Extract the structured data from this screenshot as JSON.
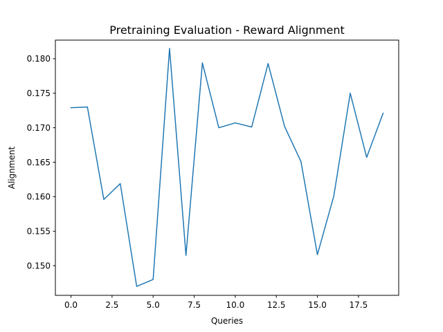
{
  "chart_data": {
    "type": "line",
    "title": "Pretraining Evaluation - Reward Alignment",
    "xlabel": "Queries",
    "ylabel": "Alignment",
    "xlim": [
      -0.95,
      19.95
    ],
    "ylim": [
      0.1457,
      0.1827
    ],
    "xticks": [
      0,
      2.5,
      5,
      7.5,
      10,
      12.5,
      15,
      17.5
    ],
    "xtick_labels": [
      "0.0",
      "2.5",
      "5.0",
      "7.5",
      "10.0",
      "12.5",
      "15.0",
      "17.5"
    ],
    "yticks": [
      0.15,
      0.155,
      0.16,
      0.165,
      0.17,
      0.175,
      0.18
    ],
    "ytick_labels": [
      "0.150",
      "0.155",
      "0.160",
      "0.165",
      "0.170",
      "0.175",
      "0.180"
    ],
    "grid": false,
    "legend": "none",
    "series": [
      {
        "color": "#1f77b4",
        "x": [
          0,
          1,
          2,
          3,
          4,
          5,
          6,
          7,
          8,
          9,
          10,
          11,
          12,
          13,
          14,
          15,
          16,
          17,
          18,
          19
        ],
        "y": [
          0.1729,
          0.173,
          0.1596,
          0.1619,
          0.147,
          0.148,
          0.1815,
          0.1515,
          0.1794,
          0.17,
          0.1707,
          0.1701,
          0.1793,
          0.1702,
          0.1651,
          0.1516,
          0.1601,
          0.175,
          0.1657,
          0.1721
        ]
      }
    ]
  }
}
